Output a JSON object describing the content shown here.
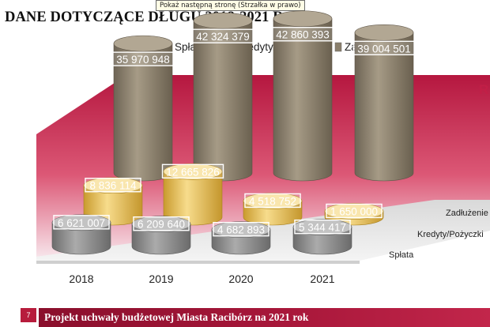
{
  "tooltip": "Pokaż następną stronę (Strzałka w prawo)",
  "slide_title": "DANE DOTYCZĄCE DŁUGU 2018-2021 R",
  "corner_mark": "R",
  "page_number": "7",
  "footer_text": "Projekt uchwały budżetowej Miasta Racibórz na 2021 rok",
  "colors": {
    "splata": "#8c8c8c",
    "kredyty": "#e3bf5c",
    "zadluzenie": "#8a7f6c",
    "backwall": "#c4254b",
    "accent": "#b71c3c"
  },
  "chart_data": {
    "type": "bar",
    "style": "3d-cylinder",
    "title": "",
    "categories": [
      "2018",
      "2019",
      "2020",
      "2021"
    ],
    "series": [
      {
        "name": "Spłata",
        "values": [
          6621007,
          6209640,
          4682893,
          5344417
        ],
        "labels": [
          "6 621 007",
          "6 209 640",
          "4 682 893",
          "5 344 417"
        ]
      },
      {
        "name": "Kredyty/Pożyczki",
        "values": [
          8836114,
          12665826,
          4518752,
          1650000
        ],
        "labels": [
          "8 836 114",
          "12 665 826",
          "4 518 752",
          "1 650 000"
        ]
      },
      {
        "name": "Zadłużenie",
        "values": [
          35970948,
          42324379,
          42860393,
          39004501
        ],
        "labels": [
          "35 970 948",
          "42 324 379",
          "42 860 393",
          "39 004 501"
        ]
      }
    ],
    "depth_labels": [
      "Zadłużenie",
      "Kredyty/Pożyczki",
      "Spłata"
    ],
    "legend": "top",
    "grid": false
  }
}
